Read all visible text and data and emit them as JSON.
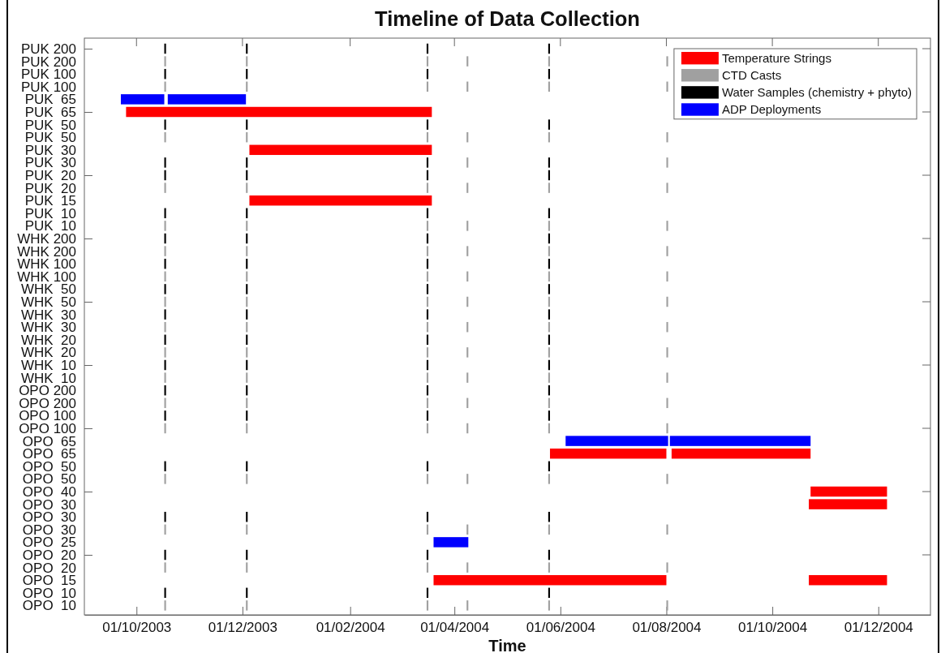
{
  "chart_data": {
    "type": "bar",
    "orientation": "horizontal",
    "title": "Timeline of Data Collection",
    "xlabel": "Time",
    "categories": [
      "PUK 200",
      "PUK 200",
      "PUK 100",
      "PUK 100",
      "PUK  65",
      "PUK  65",
      "PUK  50",
      "PUK  50",
      "PUK  30",
      "PUK  30",
      "PUK  20",
      "PUK  20",
      "PUK  15",
      "PUK  10",
      "PUK  10",
      "WHK 200",
      "WHK 200",
      "WHK 100",
      "WHK 100",
      "WHK  50",
      "WHK  50",
      "WHK  30",
      "WHK  30",
      "WHK  20",
      "WHK  20",
      "WHK  10",
      "WHK  10",
      "OPO 200",
      "OPO 200",
      "OPO 100",
      "OPO 100",
      "OPO  65",
      "OPO  65",
      "OPO  50",
      "OPO  50",
      "OPO  40",
      "OPO  30",
      "OPO  30",
      "OPO  30",
      "OPO  25",
      "OPO  20",
      "OPO  20",
      "OPO  15",
      "OPO  10",
      "OPO  10"
    ],
    "xlim": [
      "2003-09-01",
      "2004-12-31"
    ],
    "xticks": [
      {
        "value": "2003-10-01",
        "label": "01/10/2003"
      },
      {
        "value": "2003-12-01",
        "label": "01/12/2003"
      },
      {
        "value": "2004-02-01",
        "label": "01/02/2004"
      },
      {
        "value": "2004-04-01",
        "label": "01/04/2004"
      },
      {
        "value": "2004-06-01",
        "label": "01/06/2004"
      },
      {
        "value": "2004-08-01",
        "label": "01/08/2004"
      },
      {
        "value": "2004-10-01",
        "label": "01/10/2004"
      },
      {
        "value": "2004-12-01",
        "label": "01/12/2004"
      }
    ],
    "legend": "top right",
    "series": [
      {
        "name": "Temperature Strings",
        "color": "#ff0000",
        "values": [
          null,
          null,
          null,
          null,
          null,
          176,
          null,
          null,
          105,
          null,
          null,
          null,
          105,
          null,
          null,
          null,
          null,
          null,
          null,
          null,
          null,
          null,
          null,
          null,
          null,
          null,
          null,
          null,
          null,
          null,
          null,
          null,
          67,
          null,
          null,
          44,
          45,
          null,
          null,
          null,
          null,
          null,
          134,
          null,
          null
        ],
        "base": [
          null,
          null,
          null,
          null,
          null,
          12320,
          null,
          null,
          12391,
          null,
          null,
          null,
          12391,
          null,
          null,
          null,
          null,
          null,
          null,
          null,
          null,
          null,
          null,
          null,
          null,
          null,
          null,
          null,
          null,
          null,
          null,
          null,
          12564,
          null,
          null,
          12714,
          12713,
          null,
          null,
          null,
          null,
          null,
          12497,
          null,
          null
        ]
      },
      {
        "color": "#ff0000",
        "values": [
          null,
          null,
          null,
          null,
          null,
          null,
          null,
          null,
          null,
          null,
          null,
          null,
          null,
          null,
          null,
          null,
          null,
          null,
          null,
          null,
          null,
          null,
          null,
          null,
          null,
          null,
          null,
          null,
          null,
          null,
          null,
          null,
          80,
          null,
          null,
          null,
          null,
          null,
          null,
          null,
          null,
          null,
          45,
          null,
          null
        ],
        "base": [
          null,
          null,
          null,
          null,
          null,
          null,
          null,
          null,
          null,
          null,
          null,
          null,
          null,
          null,
          null,
          null,
          null,
          null,
          null,
          null,
          null,
          null,
          null,
          null,
          null,
          null,
          null,
          null,
          null,
          null,
          null,
          null,
          12634,
          null,
          null,
          null,
          null,
          null,
          null,
          null,
          null,
          null,
          12713,
          null,
          null
        ]
      },
      {
        "name": "CTD Casts",
        "color": "#a0a0a0",
        "values": [
          null,
          1,
          null,
          1,
          null,
          null,
          null,
          1,
          null,
          null,
          null,
          1,
          null,
          null,
          1,
          null,
          1,
          null,
          1,
          null,
          1,
          null,
          1,
          null,
          1,
          null,
          1,
          null,
          1,
          null,
          1,
          null,
          null,
          null,
          1,
          null,
          null,
          null,
          1,
          null,
          null,
          1,
          null,
          null,
          1
        ],
        "base": [
          null,
          12342,
          null,
          12342,
          null,
          null,
          null,
          12342,
          null,
          null,
          null,
          12342,
          null,
          null,
          12342,
          null,
          12342,
          null,
          12342,
          null,
          12342,
          null,
          12342,
          null,
          12342,
          null,
          12342,
          null,
          12342,
          null,
          12342,
          null,
          null,
          null,
          12342,
          null,
          null,
          null,
          12342,
          null,
          null,
          12342,
          null,
          null,
          12342
        ]
      },
      {
        "color": "#a0a0a0",
        "values": [
          null,
          1,
          null,
          1,
          null,
          null,
          null,
          1,
          null,
          null,
          null,
          1,
          null,
          null,
          1,
          null,
          1,
          null,
          1,
          null,
          1,
          null,
          1,
          null,
          1,
          null,
          1,
          null,
          1,
          null,
          1,
          null,
          null,
          null,
          1,
          null,
          null,
          null,
          1,
          null,
          null,
          1,
          null,
          null,
          1
        ],
        "base": [
          null,
          12389,
          null,
          12389,
          null,
          null,
          null,
          12389,
          null,
          null,
          null,
          12389,
          null,
          null,
          12389,
          null,
          12389,
          null,
          12389,
          null,
          12389,
          null,
          12389,
          null,
          12389,
          null,
          12389,
          null,
          12389,
          null,
          12389,
          null,
          null,
          null,
          12389,
          null,
          null,
          null,
          12389,
          null,
          null,
          12389,
          null,
          null,
          12389
        ]
      },
      {
        "color": "#a0a0a0",
        "values": [
          null,
          1,
          null,
          1,
          null,
          null,
          null,
          1,
          null,
          null,
          null,
          1,
          null,
          null,
          1,
          null,
          1,
          null,
          1,
          null,
          1,
          null,
          1,
          null,
          1,
          null,
          1,
          null,
          1,
          null,
          1,
          null,
          null,
          null,
          1,
          null,
          null,
          null,
          1,
          null,
          null,
          1,
          null,
          null,
          1
        ],
        "base": [
          null,
          12493,
          null,
          12493,
          null,
          null,
          null,
          12493,
          null,
          null,
          null,
          12493,
          null,
          null,
          12493,
          null,
          12493,
          null,
          12493,
          null,
          12493,
          null,
          12493,
          null,
          12493,
          null,
          12493,
          null,
          12493,
          null,
          12493,
          null,
          null,
          null,
          12493,
          null,
          null,
          null,
          12493,
          null,
          null,
          12493,
          null,
          null,
          12493
        ]
      },
      {
        "color": "#a0a0a0",
        "values": [
          null,
          1,
          null,
          1,
          null,
          null,
          null,
          1,
          null,
          1,
          null,
          1,
          null,
          null,
          1,
          null,
          1,
          null,
          1,
          null,
          1,
          null,
          1,
          null,
          1,
          null,
          1,
          null,
          1,
          null,
          1,
          null,
          null,
          null,
          1,
          null,
          null,
          null,
          1,
          null,
          null,
          1,
          null,
          null,
          1
        ],
        "base": [
          null,
          12516,
          null,
          12516,
          null,
          null,
          null,
          12516,
          null,
          12516,
          null,
          12516,
          null,
          null,
          12516,
          null,
          12516,
          null,
          12516,
          null,
          12516,
          null,
          12516,
          null,
          12516,
          null,
          12516,
          null,
          12516,
          null,
          12516,
          null,
          null,
          null,
          12516,
          null,
          null,
          null,
          12516,
          null,
          null,
          12516,
          null,
          null,
          12516
        ]
      },
      {
        "color": "#a0a0a0",
        "values": [
          null,
          1,
          null,
          1,
          null,
          null,
          null,
          1,
          null,
          null,
          null,
          1,
          null,
          null,
          1,
          null,
          1,
          null,
          1,
          null,
          1,
          null,
          1,
          null,
          1,
          null,
          1,
          null,
          1,
          null,
          1,
          null,
          null,
          null,
          1,
          null,
          null,
          null,
          1,
          null,
          null,
          1,
          null,
          null,
          1
        ],
        "base": [
          null,
          12563,
          null,
          12563,
          null,
          null,
          null,
          12563,
          null,
          null,
          null,
          12563,
          null,
          null,
          12563,
          null,
          12563,
          null,
          12563,
          null,
          12563,
          null,
          12563,
          null,
          12563,
          null,
          12563,
          null,
          12563,
          null,
          12563,
          null,
          null,
          null,
          12563,
          null,
          null,
          null,
          12563,
          null,
          null,
          12563,
          null,
          null,
          12563
        ]
      },
      {
        "color": "#a0a0a0",
        "values": [
          null,
          1,
          null,
          1,
          null,
          null,
          null,
          1,
          null,
          1,
          null,
          1,
          null,
          null,
          1,
          null,
          1,
          null,
          1,
          null,
          1,
          null,
          1,
          null,
          1,
          null,
          1,
          null,
          1,
          null,
          1,
          null,
          null,
          null,
          1,
          null,
          null,
          null,
          1,
          null,
          null,
          1,
          null,
          null,
          1
        ],
        "base": [
          null,
          12631,
          null,
          12631,
          null,
          null,
          null,
          12631,
          null,
          12631,
          null,
          12631,
          null,
          null,
          12631,
          null,
          12631,
          null,
          12631,
          null,
          12631,
          null,
          12631,
          null,
          12631,
          null,
          12631,
          null,
          12631,
          null,
          12631,
          null,
          null,
          null,
          12631,
          null,
          null,
          null,
          12631,
          null,
          null,
          12631,
          null,
          null,
          12631
        ]
      },
      {
        "name": "Water Samples (chemistry + phyto)",
        "color": "#000000",
        "values": [
          1,
          null,
          1,
          null,
          null,
          null,
          1,
          null,
          null,
          1,
          1,
          null,
          null,
          1,
          null,
          1,
          null,
          1,
          null,
          1,
          null,
          1,
          null,
          1,
          null,
          1,
          null,
          1,
          null,
          1,
          null,
          null,
          null,
          1,
          null,
          null,
          null,
          1,
          null,
          null,
          1,
          null,
          null,
          1,
          null
        ],
        "base": [
          12342,
          null,
          12342,
          null,
          null,
          null,
          12342,
          null,
          null,
          12342,
          12342,
          null,
          null,
          12342,
          null,
          12342,
          null,
          12342,
          null,
          12342,
          null,
          12342,
          null,
          12342,
          null,
          12342,
          null,
          12342,
          null,
          12342,
          null,
          null,
          null,
          12342,
          null,
          null,
          null,
          12342,
          null,
          null,
          12342,
          null,
          null,
          12342,
          null
        ]
      },
      {
        "color": "#000000",
        "values": [
          1,
          null,
          1,
          null,
          null,
          null,
          1,
          null,
          null,
          1,
          1,
          null,
          null,
          1,
          null,
          1,
          null,
          1,
          null,
          1,
          null,
          1,
          null,
          1,
          null,
          1,
          null,
          1,
          null,
          1,
          null,
          null,
          null,
          1,
          null,
          null,
          null,
          1,
          null,
          null,
          1,
          null,
          null,
          1,
          null
        ],
        "base": [
          12389,
          null,
          12389,
          null,
          null,
          null,
          12389,
          null,
          null,
          12389,
          12389,
          null,
          null,
          12389,
          null,
          12389,
          null,
          12389,
          null,
          12389,
          null,
          12389,
          null,
          12389,
          null,
          12389,
          null,
          12389,
          null,
          12389,
          null,
          null,
          null,
          12389,
          null,
          null,
          null,
          12389,
          null,
          null,
          12389,
          null,
          null,
          12389,
          null
        ]
      },
      {
        "color": "#000000",
        "values": [
          1,
          null,
          1,
          null,
          null,
          null,
          1,
          null,
          null,
          1,
          1,
          null,
          null,
          1,
          null,
          1,
          null,
          1,
          null,
          1,
          null,
          1,
          null,
          1,
          null,
          1,
          null,
          1,
          null,
          1,
          null,
          null,
          null,
          1,
          null,
          null,
          null,
          1,
          null,
          null,
          1,
          null,
          null,
          1,
          null
        ],
        "base": [
          12493,
          null,
          12493,
          null,
          null,
          null,
          12493,
          null,
          null,
          12493,
          12493,
          null,
          null,
          12493,
          null,
          12493,
          null,
          12493,
          null,
          12493,
          null,
          12493,
          null,
          12493,
          null,
          12493,
          null,
          12493,
          null,
          12493,
          null,
          null,
          null,
          12493,
          null,
          null,
          null,
          12493,
          null,
          null,
          12493,
          null,
          null,
          12493,
          null
        ]
      },
      {
        "color": "#000000",
        "values": [
          1,
          null,
          1,
          null,
          null,
          null,
          1,
          null,
          null,
          1,
          1,
          null,
          null,
          1,
          null,
          1,
          null,
          1,
          null,
          1,
          null,
          1,
          null,
          1,
          null,
          1,
          null,
          1,
          null,
          1,
          null,
          null,
          null,
          1,
          null,
          null,
          null,
          1,
          null,
          null,
          1,
          null,
          null,
          1,
          null
        ],
        "base": [
          12563,
          null,
          12563,
          null,
          null,
          null,
          12563,
          null,
          null,
          12563,
          12563,
          null,
          null,
          12563,
          null,
          12563,
          null,
          12563,
          null,
          12563,
          null,
          12563,
          null,
          12563,
          null,
          12563,
          null,
          12563,
          null,
          12563,
          null,
          null,
          null,
          12563,
          null,
          null,
          null,
          12563,
          null,
          null,
          12563,
          null,
          null,
          12563,
          null
        ]
      },
      {
        "name": "ADP Deployments",
        "color": "#0000ff",
        "values": [
          null,
          null,
          null,
          null,
          25,
          null,
          null,
          null,
          null,
          null,
          null,
          null,
          null,
          null,
          null,
          null,
          null,
          null,
          null,
          null,
          null,
          null,
          null,
          null,
          null,
          null,
          null,
          null,
          null,
          null,
          null,
          59,
          null,
          null,
          null,
          null,
          null,
          null,
          null,
          20,
          null,
          null,
          null,
          null,
          null
        ],
        "base": [
          null,
          null,
          null,
          null,
          12317,
          null,
          null,
          null,
          null,
          null,
          null,
          null,
          null,
          null,
          null,
          null,
          null,
          null,
          null,
          null,
          null,
          null,
          null,
          null,
          null,
          null,
          null,
          null,
          null,
          null,
          null,
          12573,
          null,
          null,
          null,
          null,
          null,
          null,
          null,
          12497,
          null,
          null,
          null,
          null,
          null
        ]
      },
      {
        "color": "#0000ff",
        "values": [
          null,
          null,
          null,
          null,
          45,
          null,
          null,
          null,
          null,
          null,
          null,
          null,
          null,
          null,
          null,
          null,
          null,
          null,
          null,
          null,
          null,
          null,
          null,
          null,
          null,
          null,
          null,
          null,
          null,
          null,
          null,
          81,
          null,
          null,
          null,
          null,
          null,
          null,
          null,
          null,
          null,
          null,
          null,
          null,
          null
        ],
        "base": [
          null,
          null,
          null,
          null,
          12344,
          null,
          null,
          null,
          null,
          null,
          null,
          null,
          null,
          null,
          null,
          null,
          null,
          null,
          null,
          null,
          null,
          null,
          null,
          null,
          null,
          null,
          null,
          null,
          null,
          null,
          null,
          12633,
          null,
          null,
          null,
          null,
          null,
          null,
          null,
          null,
          null,
          null,
          null,
          null,
          null
        ]
      }
    ]
  }
}
